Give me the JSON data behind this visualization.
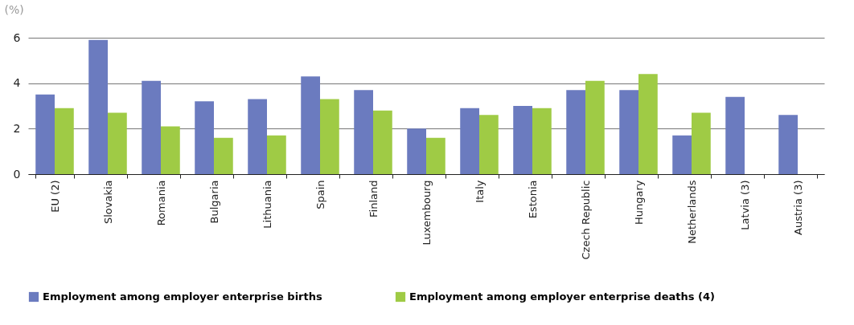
{
  "chart_data": {
    "type": "bar",
    "ylabel": "(%)",
    "categories": [
      "EU (2)",
      "Slovakia",
      "Romania",
      "Bulgaria",
      "Lithuania",
      "Spain",
      "Finland",
      "Luxembourg",
      "Italy",
      "Estonia",
      "Czech Republic",
      "Hungary",
      "Netherlands",
      "Latvia (3)",
      "Austria (3)"
    ],
    "series": [
      {
        "name": "Employment among employer enterprise births",
        "color": "#6b7bbf",
        "values": [
          3.5,
          5.9,
          4.1,
          3.2,
          3.3,
          4.3,
          3.7,
          2.0,
          2.9,
          3.0,
          3.7,
          3.7,
          1.7,
          3.4,
          2.6
        ]
      },
      {
        "name": "Employment among employer enterprise deaths (4)",
        "color": "#9fcb45",
        "values": [
          2.9,
          2.7,
          2.1,
          1.6,
          1.7,
          3.3,
          2.8,
          1.6,
          2.6,
          2.9,
          4.1,
          4.4,
          2.7,
          null,
          null
        ]
      }
    ],
    "ylim": [
      0,
      6
    ],
    "yticks": [
      0,
      2,
      4,
      6
    ],
    "grid": "y",
    "legend": "bottom"
  }
}
